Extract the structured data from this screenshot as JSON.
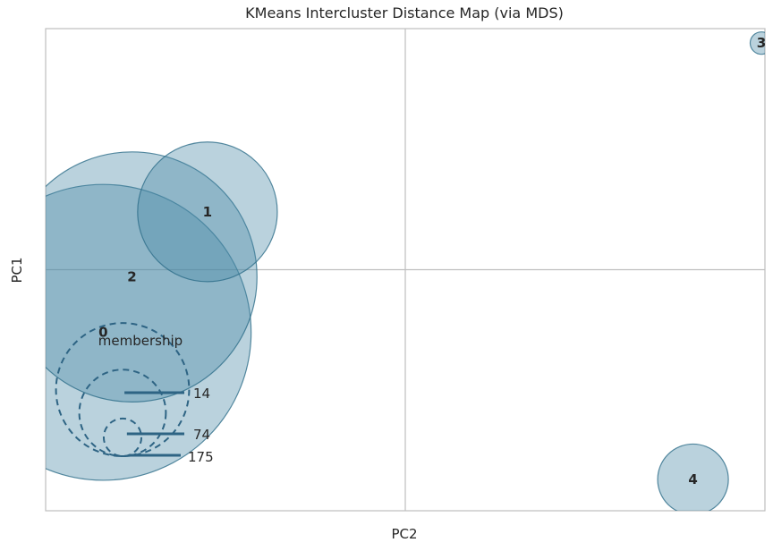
{
  "chart_data": {
    "type": "scatter",
    "title": "KMeans Intercluster Distance Map (via MDS)",
    "xlabel": "PC2",
    "ylabel": "PC1",
    "xlim": [
      -1,
      1
    ],
    "ylim": [
      -1,
      1
    ],
    "grid": true,
    "center_lines": true,
    "bubble_color": "#4a8aa6",
    "edge_color": "#2e6e8a",
    "clusters": [
      {
        "label": "0",
        "x": -0.84,
        "y": -0.26,
        "size": 175
      },
      {
        "label": "1",
        "x": -0.55,
        "y": 0.24,
        "size": 39
      },
      {
        "label": "2",
        "x": -0.76,
        "y": -0.03,
        "size": 125
      },
      {
        "label": "3",
        "x": 0.99,
        "y": 0.94,
        "size": 1
      },
      {
        "label": "4",
        "x": 0.8,
        "y": -0.87,
        "size": 10
      }
    ],
    "legend": {
      "title": "membership",
      "sizes": [
        "14",
        "74",
        "175"
      ],
      "placement": "lower-left"
    }
  }
}
